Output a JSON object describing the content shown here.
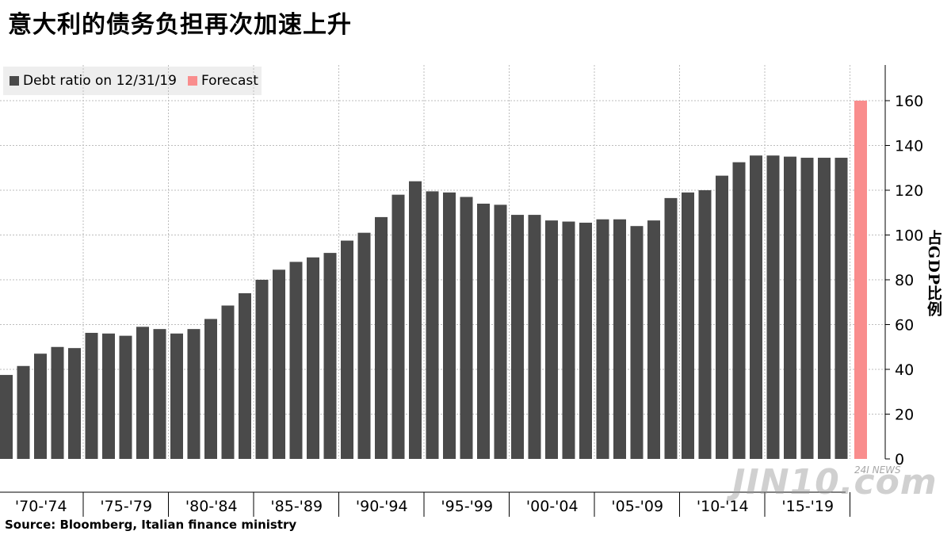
{
  "title": "意大利的债务负担再次加速上升",
  "source": "Source:  Bloomberg, Italian finance ministry",
  "watermark": "JIN10.com",
  "watermark_tag": "24I NEWS",
  "colors": {
    "bar": "#4a4a4a",
    "forecast": "#f98d8d",
    "grid": "#bdbdbd",
    "legend_bg": "#eeeeee"
  },
  "chart_data": {
    "type": "bar",
    "title": "意大利的债务负担再次加速上升",
    "ylabel": "占GDP比例",
    "xlabel": "",
    "ylim": [
      0,
      175
    ],
    "y_ticks": [
      0,
      20,
      40,
      60,
      80,
      100,
      120,
      140,
      160
    ],
    "y_axis_side": "right",
    "grid": true,
    "legend_position": "top-left",
    "legend": [
      {
        "name": "Debt ratio on 12/31/19",
        "color": "#4a4a4a"
      },
      {
        "name": "Forecast",
        "color": "#f98d8d"
      }
    ],
    "x_group_labels": [
      "'70-'74",
      "'75-'79",
      "'80-'84",
      "'85-'89",
      "'90-'94",
      "'95-'99",
      "'00-'04",
      "'05-'09",
      "'10-'14",
      "'15-'19"
    ],
    "series": [
      {
        "name": "Debt ratio on 12/31/19",
        "values": [
          37.5,
          41.5,
          47,
          50,
          49.5,
          56.3,
          56,
          55,
          59,
          58,
          56,
          58,
          62.5,
          68.5,
          74,
          80,
          84.5,
          88,
          90,
          92,
          97.5,
          101,
          108,
          118,
          124,
          119.5,
          119,
          117,
          114,
          113.5,
          109,
          109,
          106.5,
          106,
          105.5,
          107,
          107,
          104,
          106.5,
          116.5,
          119,
          120,
          126.5,
          132.5,
          135.5,
          135.5,
          135,
          134.5,
          134.5,
          134.5
        ]
      },
      {
        "name": "Forecast",
        "values": [
          160
        ]
      }
    ]
  }
}
